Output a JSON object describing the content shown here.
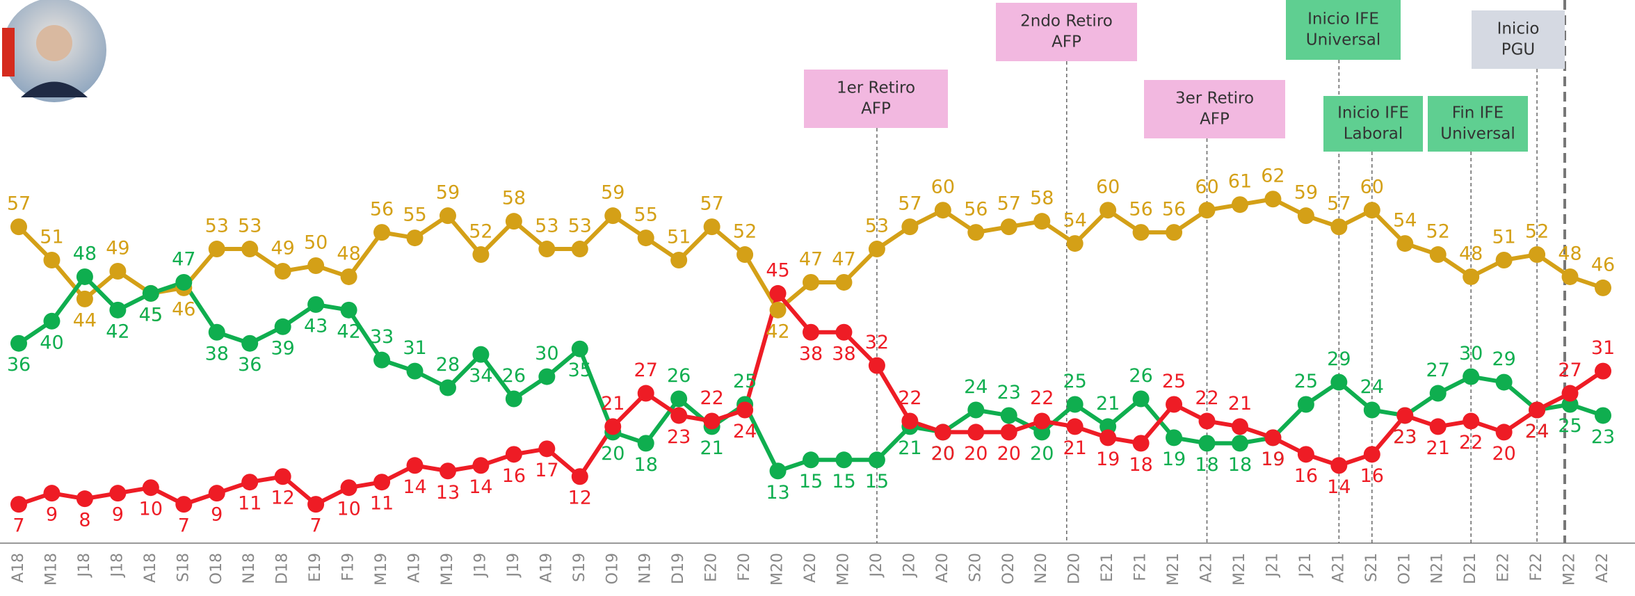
{
  "chart_data": {
    "type": "line",
    "categories": [
      "A18",
      "M18",
      "J18",
      "J18",
      "A18",
      "S18",
      "O18",
      "N18",
      "D18",
      "E19",
      "F19",
      "M19",
      "A19",
      "M19",
      "J19",
      "J19",
      "A19",
      "S19",
      "O19",
      "N19",
      "D19",
      "E20",
      "F20",
      "M20",
      "A20",
      "M20",
      "J20",
      "J20",
      "A20",
      "S20",
      "O20",
      "N20",
      "D20",
      "E21",
      "F21",
      "M21",
      "A21",
      "M21",
      "J21",
      "J21",
      "A21",
      "S21",
      "O21",
      "N21",
      "D21",
      "E22",
      "F22",
      "M22",
      "A22"
    ],
    "series": [
      {
        "color": "#d4a017",
        "values": [
          57,
          51,
          44,
          49,
          45,
          46,
          53,
          53,
          49,
          50,
          48,
          56,
          55,
          59,
          52,
          58,
          53,
          53,
          59,
          55,
          51,
          57,
          52,
          42,
          47,
          47,
          53,
          57,
          60,
          56,
          57,
          58,
          54,
          60,
          56,
          56,
          60,
          61,
          62,
          59,
          57,
          60,
          54,
          52,
          48,
          51,
          52,
          48,
          46
        ]
      },
      {
        "color": "#0fae4f",
        "values": [
          36,
          40,
          48,
          42,
          45,
          47,
          38,
          36,
          39,
          43,
          42,
          33,
          31,
          28,
          34,
          26,
          30,
          35,
          20,
          18,
          26,
          21,
          25,
          13,
          15,
          15,
          15,
          21,
          20,
          24,
          23,
          20,
          25,
          21,
          26,
          19,
          18,
          18,
          19,
          25,
          29,
          24,
          23,
          27,
          30,
          29,
          24,
          25,
          23
        ]
      },
      {
        "color": "#ee1c25",
        "values": [
          7,
          9,
          8,
          9,
          10,
          7,
          9,
          11,
          12,
          7,
          10,
          11,
          14,
          13,
          14,
          16,
          17,
          12,
          21,
          27,
          23,
          22,
          24,
          45,
          38,
          38,
          32,
          22,
          20,
          20,
          20,
          22,
          21,
          19,
          18,
          25,
          22,
          21,
          19,
          16,
          14,
          16,
          23,
          21,
          22,
          20,
          24,
          27,
          31
        ]
      }
    ],
    "annotations": [
      {
        "lines": [
          "1er Retiro",
          "AFP"
        ],
        "color": "#f2b8e0"
      },
      {
        "lines": [
          "2ndo Retiro",
          "AFP"
        ],
        "color": "#f2b8e0"
      },
      {
        "lines": [
          "3er Retiro",
          "AFP"
        ],
        "color": "#f2b8e0"
      },
      {
        "lines": [
          "Inicio IFE",
          "Universal"
        ],
        "color": "#5fcf91"
      },
      {
        "lines": [
          "Inicio IFE",
          "Laboral"
        ],
        "color": "#5fcf91"
      },
      {
        "lines": [
          "Fin IFE",
          "Universal"
        ],
        "color": "#5fcf91"
      },
      {
        "lines": [
          "Inicio",
          "PGU"
        ],
        "color": "#d5d9e2"
      }
    ]
  }
}
